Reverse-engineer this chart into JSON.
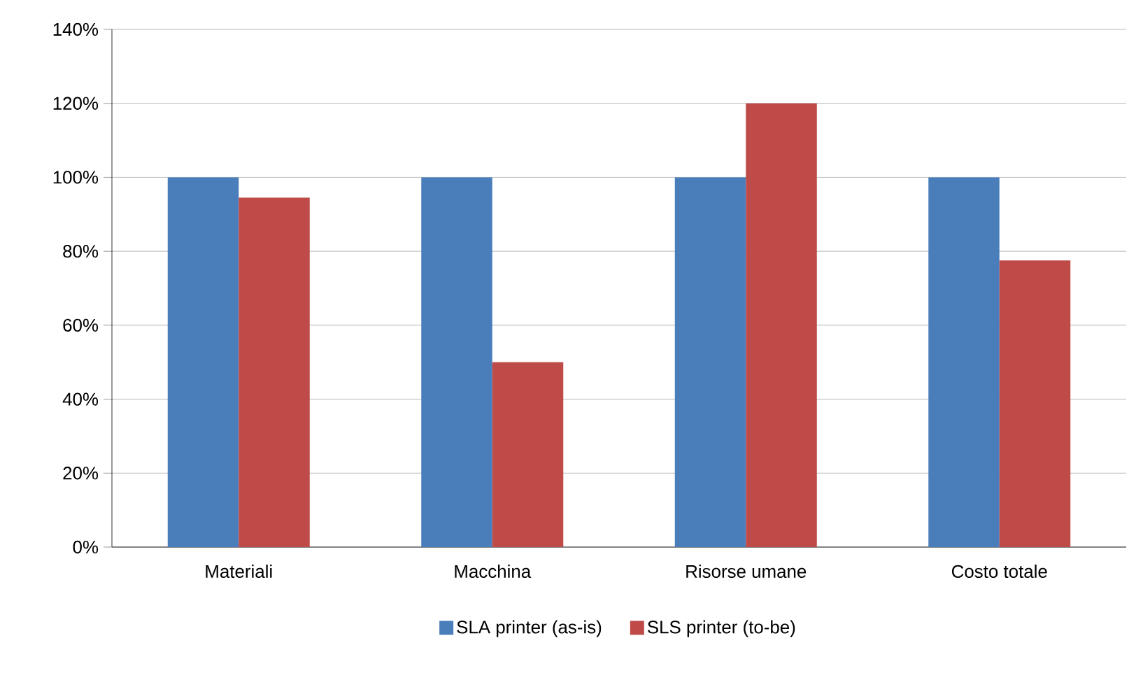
{
  "chart_data": {
    "type": "bar",
    "categories": [
      "Materiali",
      "Macchina",
      "Risorse umane",
      "Costo totale"
    ],
    "series": [
      {
        "name": "SLA printer (as-is)",
        "color": "#4a7ebb",
        "values": [
          100,
          100,
          100,
          100
        ]
      },
      {
        "name": "SLS printer (to-be)",
        "color": "#be4b48",
        "values": [
          94.5,
          50,
          120,
          77.5
        ]
      }
    ],
    "ylim": [
      0,
      140
    ],
    "yticks": [
      {
        "value": 0,
        "label": "0%"
      },
      {
        "value": 20,
        "label": "20%"
      },
      {
        "value": 40,
        "label": "40%"
      },
      {
        "value": 60,
        "label": "60%"
      },
      {
        "value": 80,
        "label": "80%"
      },
      {
        "value": 100,
        "label": "100%"
      },
      {
        "value": 120,
        "label": "120%"
      },
      {
        "value": 140,
        "label": "140%"
      }
    ],
    "grid": "y",
    "legend": "bottom"
  }
}
